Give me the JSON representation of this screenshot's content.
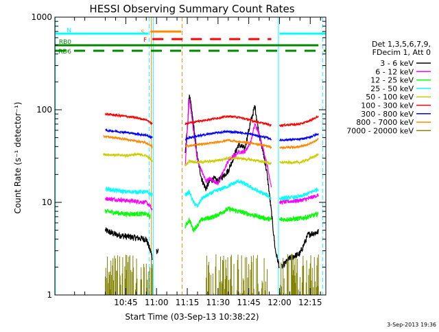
{
  "chart_data": {
    "type": "line",
    "title": "HESSI Observing Summary Count Rates",
    "xlabel": "Start Time (03-Sep-13 10:38:22)",
    "ylabel": "Count Rate (s⁻¹ detector⁻¹)",
    "yscale": "log",
    "ylim": [
      1,
      1000
    ],
    "xlim_minutes": [
      10.4,
      142.6
    ],
    "x_ticks": [
      {
        "label": "10:45",
        "minute": 45
      },
      {
        "label": "11:00",
        "minute": 60
      },
      {
        "label": "11:15",
        "minute": 75
      },
      {
        "label": "11:30",
        "minute": 90
      },
      {
        "label": "11:45",
        "minute": 105
      },
      {
        "label": "12:00",
        "minute": 120
      },
      {
        "label": "12:15",
        "minute": 135
      }
    ],
    "y_ticks": [
      {
        "label": "1",
        "value": 1
      },
      {
        "label": "10",
        "value": 10
      },
      {
        "label": "100",
        "value": 100
      },
      {
        "label": "1000",
        "value": 1000
      }
    ],
    "legend_header": [
      "Det 1,3,5,6,7,9,",
      "FDecim 1, Att 0"
    ],
    "legend_position": "right",
    "gap_minutes": [
      61,
      74
    ],
    "series": [
      {
        "name": "3 - 6 keV",
        "color": "#000000",
        "noise": 0.08,
        "segments": [
          [
            [
              35,
              5
            ],
            [
              40,
              4.5
            ],
            [
              45,
              4.3
            ],
            [
              55,
              4
            ],
            [
              57,
              3
            ],
            [
              58,
              2.5
            ]
          ],
          [
            [
              60,
              3
            ],
            [
              61,
              3
            ]
          ],
          [
            [
              74,
              35
            ],
            [
              75,
              60
            ],
            [
              76,
              150
            ],
            [
              78,
              70
            ],
            [
              80,
              30
            ],
            [
              82,
              18
            ],
            [
              84,
              14
            ],
            [
              86,
              17
            ],
            [
              88,
              18
            ],
            [
              90,
              17
            ],
            [
              95,
              22
            ],
            [
              100,
              42
            ],
            [
              103,
              38
            ],
            [
              106,
              75
            ],
            [
              108,
              110
            ],
            [
              110,
              55
            ],
            [
              112,
              35
            ],
            [
              114,
              20
            ],
            [
              116,
              8
            ],
            [
              118,
              3
            ],
            [
              120,
              2
            ]
          ],
          [
            [
              121,
              2
            ],
            [
              125,
              2.5
            ],
            [
              130,
              2.8
            ],
            [
              134,
              4.5
            ],
            [
              139,
              4.8
            ]
          ]
        ]
      },
      {
        "name": "6 - 12 keV",
        "color": "#ff00ff",
        "noise": 0.05,
        "segments": [
          [
            [
              35,
              11
            ],
            [
              45,
              10.5
            ],
            [
              55,
              10
            ],
            [
              57,
              9
            ],
            [
              58,
              8
            ]
          ],
          [
            [
              74,
              25
            ],
            [
              76,
              135
            ],
            [
              78,
              60
            ],
            [
              80,
              28
            ],
            [
              82,
              22
            ],
            [
              84,
              17
            ],
            [
              86,
              18
            ],
            [
              88,
              17
            ],
            [
              90,
              16
            ],
            [
              95,
              28
            ],
            [
              100,
              35
            ],
            [
              103,
              35
            ],
            [
              106,
              45
            ],
            [
              108,
              70
            ],
            [
              110,
              55
            ],
            [
              112,
              38
            ],
            [
              114,
              25
            ],
            [
              116,
              15
            ]
          ],
          [
            [
              120,
              10
            ],
            [
              130,
              10.5
            ],
            [
              134,
              11
            ],
            [
              139,
              12
            ]
          ]
        ]
      },
      {
        "name": "12 - 25 keV",
        "color": "#00ff00",
        "noise": 0.06,
        "segments": [
          [
            [
              35,
              8
            ],
            [
              45,
              7.5
            ],
            [
              55,
              7.5
            ],
            [
              57,
              7
            ]
          ],
          [
            [
              74,
              5.5
            ],
            [
              76,
              6.5
            ],
            [
              78,
              5
            ],
            [
              82,
              6.5
            ],
            [
              88,
              7
            ],
            [
              95,
              8.5
            ],
            [
              100,
              8
            ],
            [
              105,
              7.5
            ],
            [
              110,
              7
            ],
            [
              116,
              6.5
            ]
          ],
          [
            [
              120,
              6.5
            ],
            [
              130,
              6.7
            ],
            [
              134,
              7
            ],
            [
              139,
              7.5
            ]
          ]
        ]
      },
      {
        "name": "25 - 50 keV",
        "color": "#00ffff",
        "noise": 0.05,
        "segments": [
          [
            [
              35,
              14
            ],
            [
              45,
              13
            ],
            [
              55,
              13
            ],
            [
              58,
              12
            ]
          ],
          [
            [
              74,
              12
            ],
            [
              76,
              13
            ],
            [
              78,
              10
            ],
            [
              80,
              9
            ],
            [
              82,
              11
            ],
            [
              88,
              13
            ],
            [
              95,
              15
            ],
            [
              100,
              17
            ],
            [
              105,
              15
            ],
            [
              110,
              13
            ],
            [
              114,
              12
            ],
            [
              116,
              11
            ]
          ],
          [
            [
              120,
              11
            ],
            [
              130,
              11.5
            ],
            [
              134,
              12.5
            ],
            [
              139,
              14
            ]
          ]
        ]
      },
      {
        "name": "50 - 100 keV",
        "color": "#cccc00",
        "noise": 0.03,
        "segments": [
          [
            [
              34,
              33
            ],
            [
              45,
              32
            ],
            [
              50,
              33
            ],
            [
              55,
              32
            ],
            [
              58,
              28
            ]
          ],
          [
            [
              74,
              25
            ],
            [
              76,
              28
            ],
            [
              80,
              27
            ],
            [
              88,
              28
            ],
            [
              95,
              30
            ],
            [
              100,
              30
            ],
            [
              105,
              29
            ],
            [
              110,
              28
            ],
            [
              114,
              27
            ],
            [
              116,
              26
            ]
          ],
          [
            [
              120,
              27
            ],
            [
              130,
              27
            ],
            [
              134,
              29
            ],
            [
              139,
              33
            ]
          ]
        ]
      },
      {
        "name": "100 - 300 keV",
        "color": "#ff0000",
        "noise": 0.025,
        "segments": [
          [
            [
              35,
              90
            ],
            [
              45,
              85
            ],
            [
              50,
              82
            ],
            [
              55,
              78
            ],
            [
              58,
              70
            ]
          ],
          [
            [
              74,
              70
            ],
            [
              76,
              72
            ],
            [
              80,
              75
            ],
            [
              88,
              80
            ],
            [
              95,
              85
            ],
            [
              100,
              83
            ],
            [
              105,
              78
            ],
            [
              110,
              73
            ],
            [
              114,
              70
            ],
            [
              116,
              68
            ]
          ],
          [
            [
              120,
              68
            ],
            [
              130,
              70
            ],
            [
              134,
              75
            ],
            [
              139,
              85
            ]
          ]
        ]
      },
      {
        "name": "300 - 800 keV",
        "color": "#0000ff",
        "noise": 0.025,
        "segments": [
          [
            [
              35,
              60
            ],
            [
              45,
              57
            ],
            [
              50,
              55
            ],
            [
              55,
              53
            ],
            [
              58,
              50
            ]
          ],
          [
            [
              74,
              48
            ],
            [
              76,
              50
            ],
            [
              80,
              52
            ],
            [
              88,
              56
            ],
            [
              95,
              58
            ],
            [
              100,
              57
            ],
            [
              105,
              55
            ],
            [
              110,
              52
            ],
            [
              114,
              50
            ],
            [
              116,
              48
            ]
          ],
          [
            [
              120,
              47
            ],
            [
              130,
              48
            ],
            [
              134,
              50
            ],
            [
              139,
              55
            ]
          ]
        ]
      },
      {
        "name": "800 - 7000 keV",
        "color": "#ff8800",
        "noise": 0.025,
        "segments": [
          [
            [
              34,
              52
            ],
            [
              45,
              48
            ],
            [
              50,
              46
            ],
            [
              55,
              44
            ],
            [
              58,
              40
            ]
          ],
          [
            [
              74,
              40
            ],
            [
              76,
              41
            ],
            [
              80,
              42
            ],
            [
              88,
              44
            ],
            [
              95,
              47
            ],
            [
              100,
              45
            ],
            [
              105,
              44
            ],
            [
              110,
              42
            ],
            [
              114,
              41
            ],
            [
              116,
              39
            ]
          ],
          [
            [
              120,
              39
            ],
            [
              130,
              40
            ],
            [
              134,
              42
            ],
            [
              139,
              48
            ]
          ]
        ]
      },
      {
        "name": "7000 - 20000 keV",
        "color": "#808000",
        "noise": 0.0,
        "style": "comb",
        "segments": [
          [
            [
              35,
              1
            ],
            [
              58,
              1
            ]
          ],
          [
            [
              84,
              1
            ],
            [
              114,
              1
            ]
          ],
          [
            [
              120,
              1
            ],
            [
              139,
              1
            ]
          ]
        ]
      }
    ],
    "flag_bars": [
      {
        "label": "S",
        "color": "#ff8800",
        "y": 46,
        "start_minute": 57,
        "end_minute": 72,
        "dashes": false
      },
      {
        "label": "N",
        "color": "#00ffff",
        "y": 49,
        "start_minute": 10.4,
        "end_minute": 56,
        "dashes": false,
        "extra_segments": [
          [
            120,
            142.6
          ]
        ]
      },
      {
        "label": "F",
        "color": "#ff0000",
        "y": 57,
        "start_minute": 58,
        "end_minute": 116,
        "dashes": true
      },
      {
        "label": "RB0",
        "color": "#008800",
        "y": 66,
        "start_minute": 10.4,
        "end_minute": 139,
        "dashes": false
      },
      {
        "label": "RD6",
        "color": "#008800",
        "y": 74,
        "start_minute": 10.4,
        "end_minute": 142.6,
        "dashes": true
      }
    ],
    "vertical_markers": [
      {
        "minute": 56.5,
        "color": "#00ffff",
        "dashed": true
      },
      {
        "minute": 58.5,
        "color": "#00ffff",
        "dashed": false
      },
      {
        "minute": 57.5,
        "color": "#ff8800",
        "dashed": false
      },
      {
        "minute": 72.5,
        "color": "#ff8800",
        "dashed": true
      },
      {
        "minute": 119.5,
        "color": "#00ffff",
        "dashed": false
      },
      {
        "minute": 141,
        "color": "#00ffff",
        "dashed": true
      },
      {
        "minute": 10.6,
        "color": "#00ffff",
        "dashed": false
      }
    ]
  },
  "footer_date": "3-Sep-2013 19:36"
}
